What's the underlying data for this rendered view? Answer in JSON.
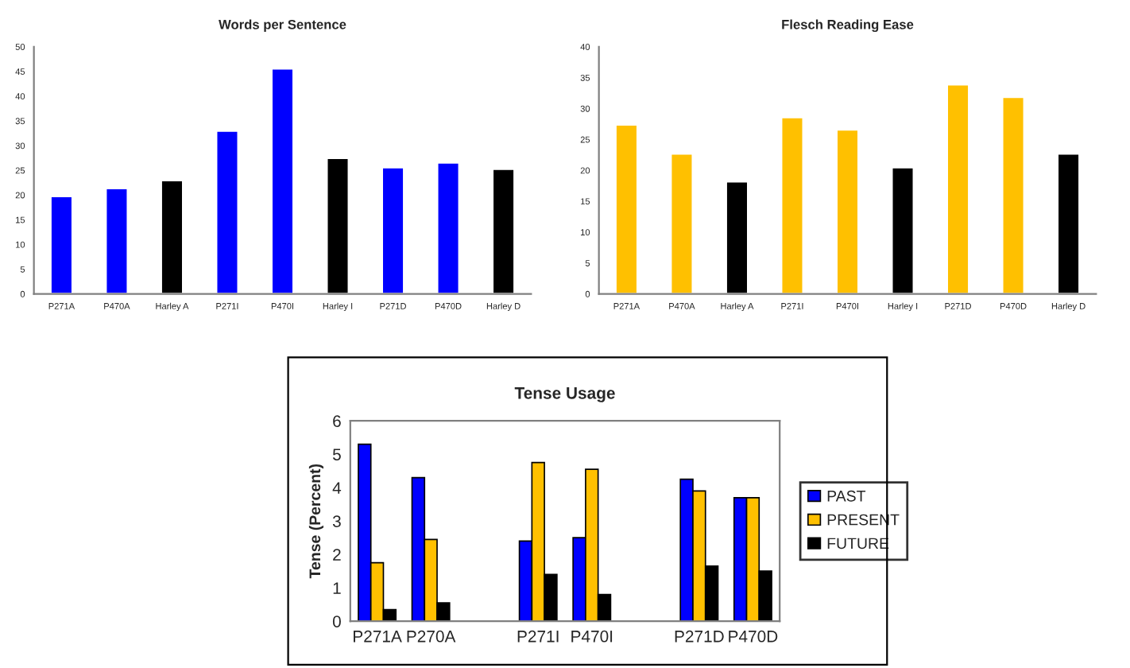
{
  "chart_data": [
    {
      "type": "bar",
      "title": "Words per Sentence",
      "categories": [
        "P271A",
        "P470A",
        "Harley A",
        "P271I",
        "P470I",
        "Harley I",
        "P271D",
        "P470D",
        "Harley D"
      ],
      "values": [
        19.8,
        21.4,
        23,
        33,
        45.6,
        27.5,
        25.6,
        26.6,
        25.3
      ],
      "colors": [
        "#0000ff",
        "#0000ff",
        "#000000",
        "#0000ff",
        "#0000ff",
        "#000000",
        "#0000ff",
        "#0000ff",
        "#000000"
      ],
      "ylim": [
        0,
        50
      ],
      "yticks": [
        0,
        5,
        10,
        15,
        20,
        25,
        30,
        35,
        40,
        45,
        50
      ],
      "grid": false,
      "legend": false
    },
    {
      "type": "bar",
      "title": "Flesch Reading Ease",
      "categories": [
        "P271A",
        "P470A",
        "Harley A",
        "P271I",
        "P470I",
        "Harley I",
        "P271D",
        "P470D",
        "Harley D"
      ],
      "values": [
        27.4,
        22.7,
        18.2,
        28.6,
        26.6,
        20.5,
        33.9,
        31.9,
        22.7
      ],
      "colors": [
        "#ffc000",
        "#ffc000",
        "#000000",
        "#ffc000",
        "#ffc000",
        "#000000",
        "#ffc000",
        "#ffc000",
        "#000000"
      ],
      "ylim": [
        0,
        40
      ],
      "yticks": [
        0,
        5,
        10,
        15,
        20,
        25,
        30,
        35,
        40
      ],
      "grid": false,
      "legend": false
    },
    {
      "type": "bar",
      "title": "Tense Usage",
      "ylabel": "Tense (Percent)",
      "categories": [
        "P271A",
        "P270A",
        null,
        "P271I",
        "P470I",
        null,
        "P271D",
        "P470D"
      ],
      "series": [
        {
          "name": "PAST",
          "color": "#0000ff",
          "values": [
            5.3,
            4.3,
            null,
            2.4,
            2.5,
            null,
            4.25,
            3.7
          ]
        },
        {
          "name": "PRESENT",
          "color": "#ffc000",
          "values": [
            1.75,
            2.45,
            null,
            4.75,
            4.55,
            null,
            3.9,
            3.7
          ]
        },
        {
          "name": "FUTURE",
          "color": "#000000",
          "values": [
            0.35,
            0.55,
            null,
            1.4,
            0.8,
            null,
            1.65,
            1.5
          ]
        }
      ],
      "ylim": [
        0,
        6
      ],
      "yticks": [
        0,
        1,
        2,
        3,
        4,
        5,
        6
      ],
      "grid": false,
      "legend": "right"
    }
  ]
}
